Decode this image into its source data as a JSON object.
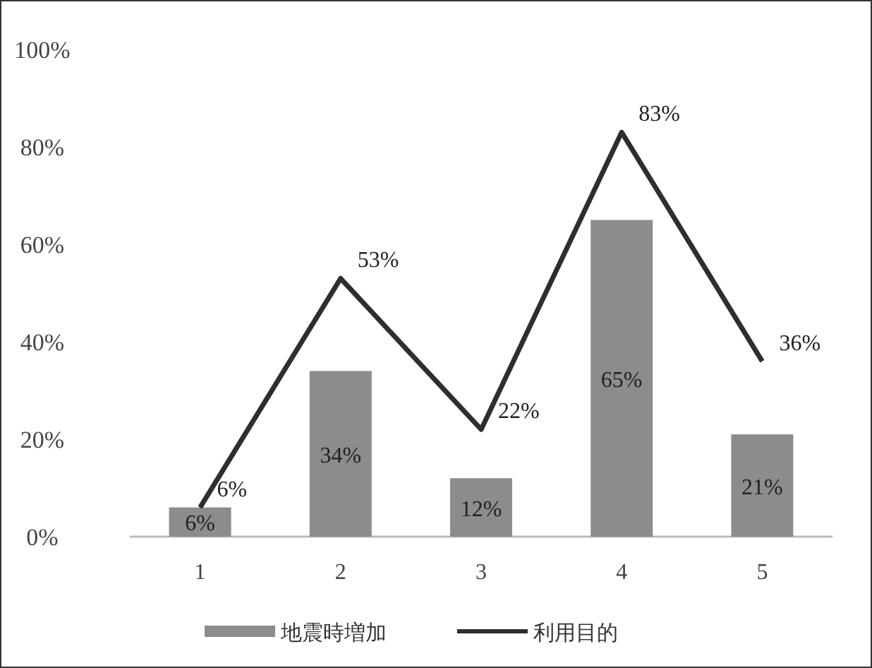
{
  "chart_data": {
    "type": "bar",
    "categories": [
      "1",
      "2",
      "3",
      "4",
      "5"
    ],
    "series": [
      {
        "name": "地震時増加",
        "color": "#8c8c8c",
        "values": [
          6,
          34,
          12,
          65,
          21
        ],
        "value_labels": [
          "6%",
          "34%",
          "12%",
          "65%",
          "21%"
        ]
      },
      {
        "name": "利用目的",
        "type": "line",
        "color": "#2e2e2e",
        "values": [
          6,
          53,
          22,
          83,
          36
        ],
        "value_labels": [
          "6%",
          "53%",
          "22%",
          "83%",
          "36%"
        ]
      }
    ],
    "ylim": [
      0,
      100
    ],
    "yticks": [
      {
        "value": 0,
        "label": "0%"
      },
      {
        "value": 20,
        "label": "20%"
      },
      {
        "value": 40,
        "label": "40%"
      },
      {
        "value": 60,
        "label": "60%"
      },
      {
        "value": 80,
        "label": "80%"
      },
      {
        "value": 100,
        "label": "100%"
      }
    ],
    "legend": "bottom",
    "grid": false
  }
}
